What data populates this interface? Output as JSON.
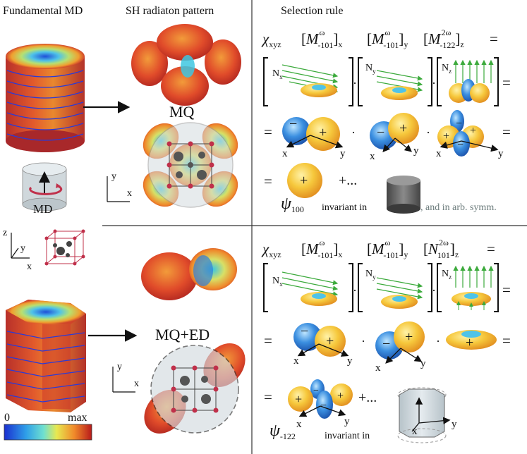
{
  "headers": {
    "col1": "Fundamental MD",
    "col2": "SH radiaton pattern",
    "col3": "Selection rule"
  },
  "labels": {
    "mq": "MQ",
    "mq_ed": "MQ+ED",
    "md": "MD",
    "axis_x": "x",
    "axis_y": "y",
    "axis_z": "z",
    "colorbar_min": "0",
    "colorbar_max": "max"
  },
  "top_rule": {
    "chi": "χ",
    "chi_sub": "xyz",
    "t1": "M",
    "t1_sup": "ω",
    "t1_sub": "-101",
    "t1_idx": "x",
    "t2": "M",
    "t2_sup": "ω",
    "t2_sub": "-101",
    "t2_idx": "y",
    "t3": "M",
    "t3_sup": "2ω",
    "t3_sub": "-122",
    "t3_idx": "z",
    "equals": "=",
    "dot": "·",
    "plus": "+",
    "minus": "−",
    "nx": "N",
    "nx_sub": "x",
    "ny": "N",
    "ny_sub": "y",
    "nz": "N",
    "nz_sub": "z",
    "plus_dots": "+...",
    "psi": "ψ",
    "psi_sub": "100",
    "invariant": "invariant in",
    "arb_symm": ", and in arb. symm."
  },
  "bottom_rule": {
    "chi": "χ",
    "chi_sub": "xyz",
    "t1": "M",
    "t1_sup": "ω",
    "t1_sub": "-101",
    "t1_idx": "x",
    "t2": "M",
    "t2_sup": "ω",
    "t2_sub": "-101",
    "t2_idx": "y",
    "t3": "N",
    "t3_sup": "2ω",
    "t3_sub": "101",
    "t3_idx": "z",
    "equals": "=",
    "dot": "·",
    "plus": "+",
    "minus": "−",
    "plus_dots": "+...",
    "psi": "ψ",
    "psi_sub": "-122",
    "invariant": "invariant in"
  },
  "colors": {
    "red": "#c0392b",
    "orange": "#e8892b",
    "yellow": "#f3c94a",
    "blue": "#2f7fd8",
    "cyan": "#7fd3e8",
    "green": "#3caa3c",
    "grey_fill": "#d4dbe0",
    "divider": "#333333"
  }
}
